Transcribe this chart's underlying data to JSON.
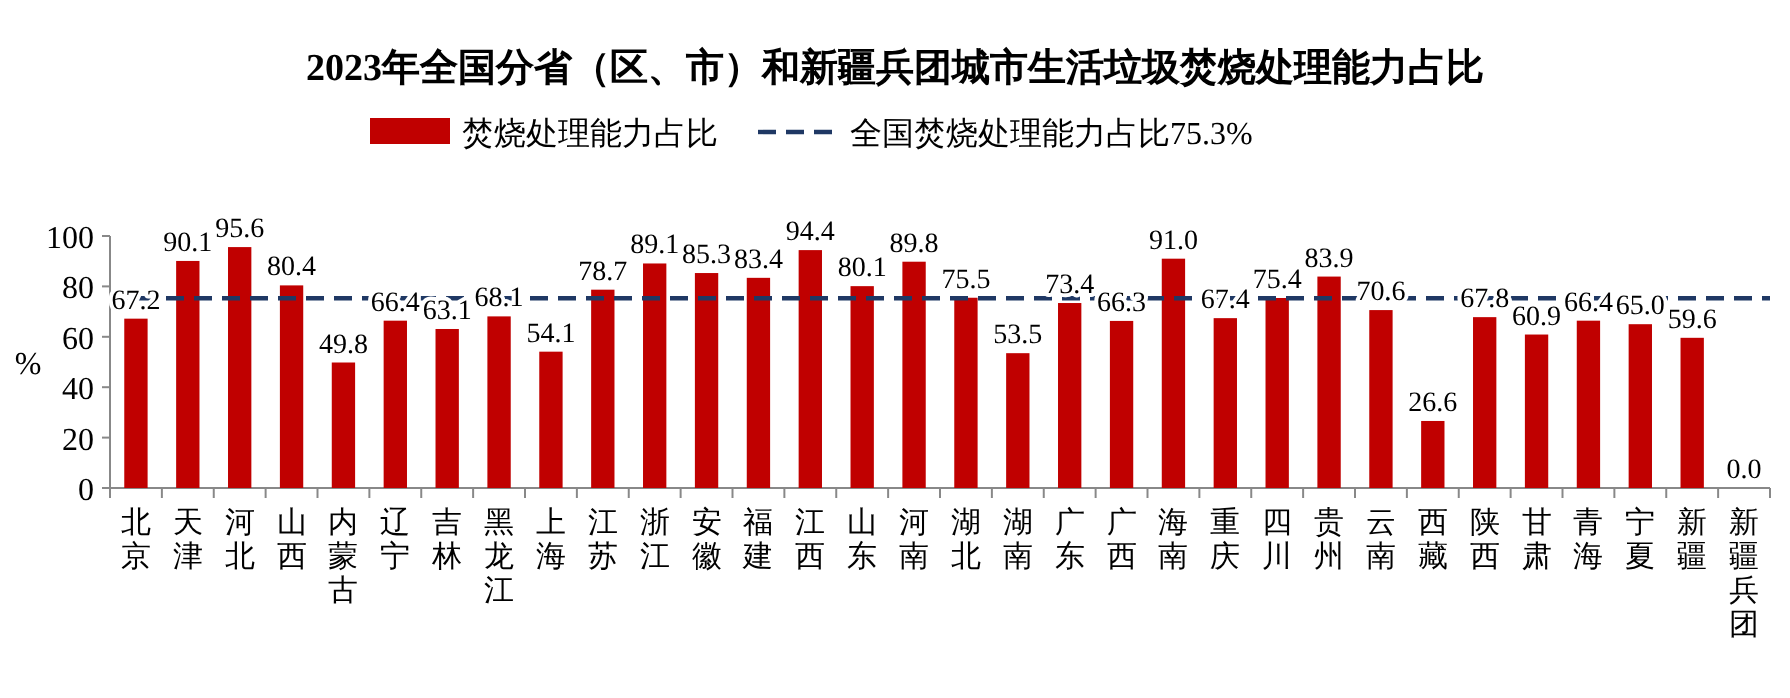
{
  "chart_data": {
    "type": "bar",
    "title": "2023年全国分省（区、市）和新疆兵团城市生活垃圾焚烧处理能力占比",
    "ylabel": "%",
    "categories": [
      "北京",
      "天津",
      "河北",
      "山西",
      "内蒙古",
      "辽宁",
      "吉林",
      "黑龙江",
      "上海",
      "江苏",
      "浙江",
      "安徽",
      "福建",
      "江西",
      "山东",
      "河南",
      "湖北",
      "湖南",
      "广东",
      "广西",
      "海南",
      "重庆",
      "四川",
      "贵州",
      "云南",
      "西藏",
      "陕西",
      "甘肃",
      "青海",
      "宁夏",
      "新疆",
      "新疆兵团"
    ],
    "series": [
      {
        "name": "焚烧处理能力占比",
        "color": "#c00000",
        "values": [
          67.2,
          90.1,
          95.6,
          80.4,
          49.8,
          66.4,
          63.1,
          68.1,
          54.1,
          78.7,
          89.1,
          85.3,
          83.4,
          94.4,
          80.1,
          89.8,
          75.5,
          53.5,
          73.4,
          66.3,
          91.0,
          67.4,
          75.4,
          83.9,
          70.6,
          26.6,
          67.8,
          60.9,
          66.4,
          65.0,
          59.6,
          0.0
        ],
        "value_labels": [
          "67.2",
          "90.1",
          "95.6",
          "80.4",
          "49.8",
          "66.4",
          "63.1",
          "68.1",
          "54.1",
          "78.7",
          "89.1",
          "85.3",
          "83.4",
          "94.4",
          "80.1",
          "89.8",
          "75.5",
          "53.5",
          "73.4",
          "66.3",
          "91.0",
          "67.4",
          "75.4",
          "83.9",
          "70.6",
          "26.6",
          "67.8",
          "60.9",
          "66.4",
          "65.0",
          "59.6",
          "0.0"
        ]
      }
    ],
    "ref_lines": [
      {
        "axis": "y",
        "value": 75.3,
        "label": "全国焚烧处理能力占比75.3%",
        "color": "#1f3864",
        "line_style": "dashed"
      }
    ],
    "ylim": [
      0,
      100
    ],
    "yticks": [
      0,
      20,
      40,
      60,
      80,
      100
    ],
    "legend": "top",
    "grid": false
  }
}
